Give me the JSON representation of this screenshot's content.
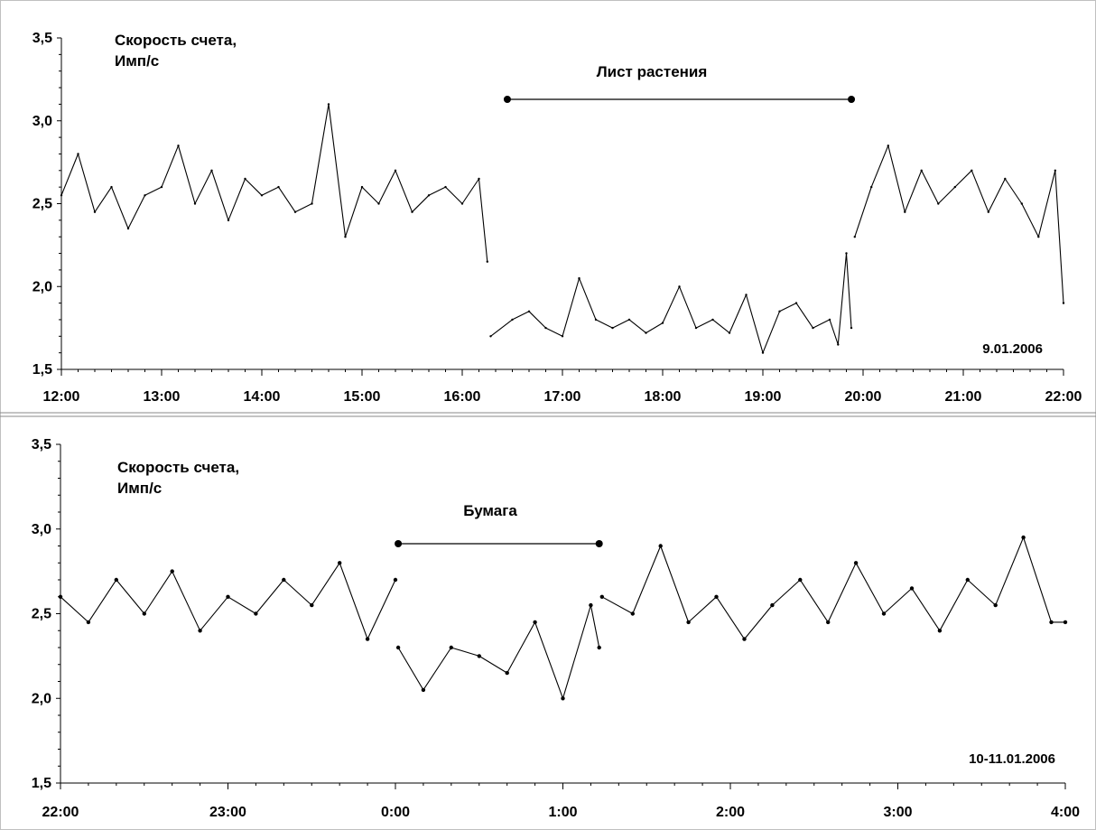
{
  "chart_data": [
    {
      "type": "line",
      "ylabel_line1": "Скорость счета,",
      "ylabel_line2": "Имп/с",
      "ylim": [
        1.5,
        3.5
      ],
      "y_ticks": [
        "1,5",
        "2,0",
        "2,5",
        "3,0",
        "3,5"
      ],
      "x_ticks": [
        "12:00",
        "13:00",
        "14:00",
        "15:00",
        "16:00",
        "17:00",
        "18:00",
        "19:00",
        "20:00",
        "21:00",
        "22:00"
      ],
      "xlim_hours": [
        0,
        10
      ],
      "date_label": "9.01.2006",
      "interval_label": "Лист растения",
      "interval": [
        "16:27",
        "19:53"
      ],
      "series": [
        {
          "x": [
            "12:00",
            "12:10",
            "12:20",
            "12:30",
            "12:40",
            "12:50",
            "13:00",
            "13:10",
            "13:20",
            "13:30",
            "13:40",
            "13:50",
            "14:00",
            "14:10",
            "14:20",
            "14:30",
            "14:40",
            "14:50",
            "15:00",
            "15:10",
            "15:20",
            "15:30",
            "15:40",
            "15:50",
            "16:00",
            "16:10",
            "16:15"
          ],
          "y": [
            2.55,
            2.8,
            2.45,
            2.6,
            2.35,
            2.55,
            2.6,
            2.85,
            2.5,
            2.7,
            2.4,
            2.65,
            2.55,
            2.6,
            2.45,
            2.5,
            3.1,
            2.3,
            2.6,
            2.5,
            2.7,
            2.45,
            2.55,
            2.6,
            2.5,
            2.65,
            2.15
          ]
        },
        {
          "x": [
            "16:17",
            "16:30",
            "16:40",
            "16:50",
            "17:00",
            "17:10",
            "17:20",
            "17:30",
            "17:40",
            "17:50",
            "18:00",
            "18:10",
            "18:20",
            "18:30",
            "18:40",
            "18:50",
            "19:00",
            "19:10",
            "19:20",
            "19:30",
            "19:40",
            "19:45",
            "19:50",
            "19:53"
          ],
          "y": [
            1.7,
            1.8,
            1.85,
            1.75,
            1.7,
            2.05,
            1.8,
            1.75,
            1.8,
            1.72,
            1.78,
            2.0,
            1.75,
            1.8,
            1.72,
            1.95,
            1.6,
            1.85,
            1.9,
            1.75,
            1.8,
            1.65,
            2.2,
            1.75
          ]
        },
        {
          "x": [
            "19:55",
            "20:05",
            "20:15",
            "20:25",
            "20:35",
            "20:45",
            "20:55",
            "21:05",
            "21:15",
            "21:25",
            "21:35",
            "21:45",
            "21:55",
            "22:00"
          ],
          "y": [
            2.3,
            2.6,
            2.85,
            2.45,
            2.7,
            2.5,
            2.6,
            2.7,
            2.45,
            2.65,
            2.5,
            2.3,
            2.7,
            1.9
          ]
        }
      ]
    },
    {
      "type": "line",
      "ylabel_line1": "Скорость счета,",
      "ylabel_line2": "Имп/с",
      "ylim": [
        1.5,
        3.5
      ],
      "y_ticks": [
        "1,5",
        "2,0",
        "2,5",
        "3,0",
        "3,5"
      ],
      "x_ticks": [
        "22:00",
        "23:00",
        "0:00",
        "1:00",
        "2:00",
        "3:00",
        "4:00"
      ],
      "xlim_hours": [
        0,
        6
      ],
      "date_label": "10-11.01.2006",
      "interval_label": "Бумага",
      "interval": [
        "0:01",
        "1:13"
      ],
      "series": [
        {
          "x": [
            "22:00",
            "22:10",
            "22:20",
            "22:30",
            "22:40",
            "22:50",
            "23:00",
            "23:10",
            "23:20",
            "23:30",
            "23:40",
            "23:50",
            "0:00"
          ],
          "y": [
            2.6,
            2.45,
            2.7,
            2.5,
            2.75,
            2.4,
            2.6,
            2.5,
            2.7,
            2.55,
            2.8,
            2.35,
            2.7
          ]
        },
        {
          "x": [
            "0:01",
            "0:10",
            "0:20",
            "0:30",
            "0:40",
            "0:50",
            "1:00",
            "1:10",
            "1:13"
          ],
          "y": [
            2.3,
            2.05,
            2.3,
            2.25,
            2.15,
            2.45,
            2.0,
            2.55,
            2.3
          ]
        },
        {
          "x": [
            "1:14",
            "1:25",
            "1:35",
            "1:45",
            "1:55",
            "2:05",
            "2:15",
            "2:25",
            "2:35",
            "2:45",
            "2:55",
            "3:05",
            "3:15",
            "3:25",
            "3:35",
            "3:45",
            "3:55",
            "4:00"
          ],
          "y": [
            2.6,
            2.5,
            2.9,
            2.45,
            2.6,
            2.35,
            2.55,
            2.7,
            2.45,
            2.8,
            2.5,
            2.65,
            2.4,
            2.7,
            2.55,
            2.95,
            2.45,
            2.45
          ]
        }
      ]
    }
  ]
}
